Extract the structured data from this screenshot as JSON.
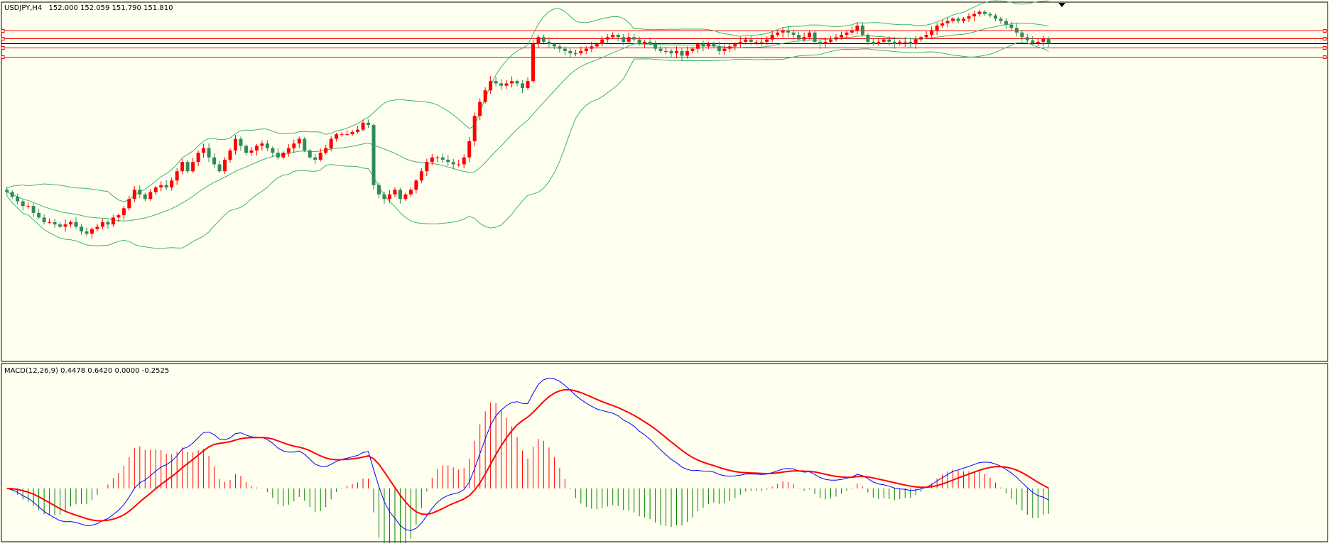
{
  "colors": {
    "background": "#FFFFF0",
    "frame": "#000000",
    "candle_up": "#FF0000",
    "candle_down": "#2E8B57",
    "bollinger": "#3CB371",
    "macd_line": "#0000FF",
    "signal_line": "#FF0000",
    "hist_up": "#FF0000",
    "hist_down": "#008000",
    "level_line": "#FF0000",
    "price_line": "#000000"
  },
  "chart_data": [
    {
      "type": "candlestick",
      "title": "USDJPY,H4",
      "ohlc_label": "152.000 152.059 151.790 151.810",
      "ylim": [
        145.0,
        152.6
      ],
      "horizontal_levels": [
        152.1,
        151.92,
        151.72,
        151.52
      ],
      "current_price_level": 151.81,
      "closes": [
        148.6,
        148.5,
        148.4,
        148.3,
        148.3,
        148.15,
        148.05,
        147.95,
        147.95,
        147.9,
        147.85,
        147.9,
        147.95,
        147.85,
        147.75,
        147.7,
        147.8,
        147.85,
        147.95,
        147.9,
        148.05,
        148.1,
        148.25,
        148.45,
        148.65,
        148.55,
        148.45,
        148.6,
        148.7,
        148.75,
        148.7,
        148.85,
        149.05,
        149.25,
        149.05,
        149.25,
        149.45,
        149.55,
        149.35,
        149.2,
        149.05,
        149.3,
        149.5,
        149.75,
        149.6,
        149.45,
        149.5,
        149.6,
        149.65,
        149.55,
        149.45,
        149.35,
        149.45,
        149.55,
        149.65,
        149.75,
        149.5,
        149.35,
        149.3,
        149.45,
        149.55,
        149.75,
        149.85,
        149.85,
        149.85,
        149.9,
        149.95,
        150.1,
        150.05,
        148.75,
        148.55,
        148.45,
        148.55,
        148.65,
        148.45,
        148.55,
        148.65,
        148.85,
        149.05,
        149.25,
        149.35,
        149.35,
        149.3,
        149.25,
        149.2,
        149.2,
        149.35,
        149.7,
        150.25,
        150.55,
        150.8,
        151.0,
        150.95,
        150.9,
        150.95,
        151.0,
        150.95,
        150.85,
        151.0,
        151.8,
        151.95,
        151.85,
        151.8,
        151.75,
        151.7,
        151.65,
        151.6,
        151.6,
        151.65,
        151.7,
        151.75,
        151.8,
        151.9,
        151.95,
        152.0,
        151.95,
        151.85,
        151.95,
        151.9,
        151.8,
        151.85,
        151.8,
        151.7,
        151.65,
        151.65,
        151.6,
        151.65,
        151.55,
        151.65,
        151.7,
        151.8,
        151.75,
        151.8,
        151.75,
        151.65,
        151.7,
        151.75,
        151.8,
        151.85,
        151.9,
        151.85,
        151.85,
        151.85,
        151.9,
        152.0,
        152.05,
        152.1,
        152.05,
        152.0,
        151.9,
        151.95,
        152.05,
        151.85,
        151.8,
        151.85,
        151.9,
        151.95,
        152.0,
        152.05,
        152.1,
        152.2,
        152.0,
        151.85,
        151.8,
        151.85,
        151.9,
        151.85,
        151.8,
        151.85,
        151.85,
        151.8,
        151.9,
        151.95,
        152.0,
        152.1,
        152.2,
        152.25,
        152.3,
        152.35,
        152.3,
        152.35,
        152.4,
        152.45,
        152.5,
        152.45,
        152.42,
        152.35,
        152.3,
        152.22,
        152.15,
        152.05,
        151.95,
        151.88,
        151.82,
        151.85,
        151.92,
        151.81
      ],
      "bollinger": {
        "upper_label": "Bands upper",
        "note": ""
      }
    },
    {
      "type": "macd",
      "title": "MACD(12,26,9) 0.4478 0.6420 0.0000 -0.2525",
      "ylim": [
        -0.45,
        0.6
      ],
      "macd": [],
      "signal": []
    }
  ]
}
